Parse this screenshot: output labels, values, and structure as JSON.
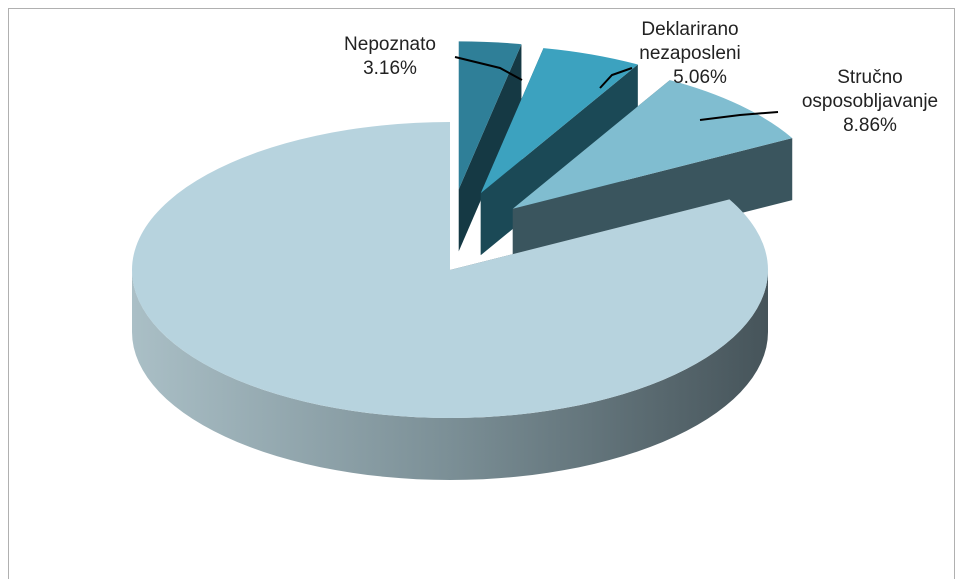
{
  "chart_data": {
    "type": "pie",
    "categories": [
      "Nepoznato",
      "Deklarirano nezaposleni",
      "Stručno osposobljavanje",
      null
    ],
    "values": [
      3.16,
      5.06,
      8.86,
      82.92
    ],
    "value_labels": [
      "3.16%",
      "5.06%",
      "8.86%",
      null
    ],
    "colors": [
      "#2f7f98",
      "#3ca2bf",
      "#80bdd0",
      "#b7d3de"
    ],
    "explode": [
      true,
      true,
      true,
      false
    ]
  }
}
